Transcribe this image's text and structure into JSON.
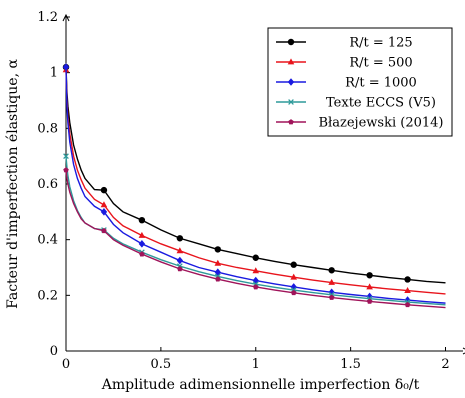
{
  "chart_data": {
    "type": "line",
    "title": "",
    "xlabel": "Amplitude adimensionnelle imperfection δ₀/t",
    "ylabel": "Facteur d'imperfection élastique, α",
    "xlim": [
      0,
      2.05
    ],
    "ylim": [
      0,
      1.2
    ],
    "x_ticks": [
      0,
      0.5,
      1,
      1.5,
      2
    ],
    "x_tick_labels": [
      "0",
      "0.5",
      "1",
      "1.5",
      "2"
    ],
    "y_ticks": [
      0,
      0.2,
      0.4,
      0.6,
      0.8,
      1,
      1.2
    ],
    "y_tick_labels": [
      "0",
      "0.2",
      "0.4",
      "0.6",
      "0.8",
      "1",
      "1.2"
    ],
    "legend_position": "top-right",
    "grid": false,
    "series": [
      {
        "name": "R/t = 125",
        "color": "#000000",
        "marker": "circle",
        "x": [
          0,
          0.005,
          0.01,
          0.02,
          0.04,
          0.06,
          0.08,
          0.1,
          0.15,
          0.2,
          0.25,
          0.3,
          0.4,
          0.5,
          0.6,
          0.7,
          0.8,
          0.9,
          1.0,
          1.1,
          1.2,
          1.3,
          1.4,
          1.5,
          1.6,
          1.7,
          1.8,
          1.9,
          2.0
        ],
        "y": [
          1.02,
          0.93,
          0.88,
          0.82,
          0.74,
          0.69,
          0.65,
          0.62,
          0.58,
          0.578,
          0.53,
          0.5,
          0.47,
          0.435,
          0.405,
          0.385,
          0.365,
          0.35,
          0.335,
          0.322,
          0.31,
          0.3,
          0.29,
          0.28,
          0.272,
          0.264,
          0.257,
          0.25,
          0.245
        ],
        "markers_x": [
          0,
          0.2,
          0.4,
          0.6,
          0.8,
          1.0,
          1.2,
          1.4,
          1.6,
          1.8
        ]
      },
      {
        "name": "R/t = 500",
        "color": "#e8141c",
        "marker": "triangle",
        "x": [
          0,
          0.005,
          0.01,
          0.02,
          0.04,
          0.06,
          0.08,
          0.1,
          0.15,
          0.2,
          0.25,
          0.3,
          0.4,
          0.5,
          0.6,
          0.7,
          0.8,
          0.9,
          1.0,
          1.1,
          1.2,
          1.3,
          1.4,
          1.5,
          1.6,
          1.7,
          1.8,
          1.9,
          2.0
        ],
        "y": [
          1.01,
          0.9,
          0.84,
          0.78,
          0.7,
          0.65,
          0.615,
          0.585,
          0.545,
          0.525,
          0.48,
          0.45,
          0.415,
          0.385,
          0.36,
          0.335,
          0.315,
          0.3,
          0.288,
          0.276,
          0.265,
          0.255,
          0.246,
          0.238,
          0.23,
          0.223,
          0.217,
          0.211,
          0.205
        ],
        "markers_x": [
          0,
          0.2,
          0.4,
          0.6,
          0.8,
          1.0,
          1.2,
          1.4,
          1.6,
          1.8
        ]
      },
      {
        "name": "R/t = 1000",
        "color": "#1a1ae0",
        "marker": "diamond",
        "x": [
          0,
          0.005,
          0.01,
          0.02,
          0.04,
          0.06,
          0.08,
          0.1,
          0.15,
          0.2,
          0.25,
          0.3,
          0.4,
          0.5,
          0.6,
          0.7,
          0.8,
          0.9,
          1.0,
          1.1,
          1.2,
          1.3,
          1.4,
          1.5,
          1.6,
          1.7,
          1.8,
          1.9,
          2.0
        ],
        "y": [
          1.02,
          0.88,
          0.82,
          0.75,
          0.67,
          0.62,
          0.585,
          0.555,
          0.52,
          0.5,
          0.455,
          0.425,
          0.385,
          0.355,
          0.325,
          0.3,
          0.283,
          0.267,
          0.253,
          0.241,
          0.23,
          0.22,
          0.211,
          0.203,
          0.196,
          0.189,
          0.183,
          0.177,
          0.172
        ],
        "markers_x": [
          0,
          0.2,
          0.4,
          0.6,
          0.8,
          1.0,
          1.2,
          1.4,
          1.6,
          1.8
        ]
      },
      {
        "name": "Texte ECCS (V5)",
        "color": "#2e9a9a",
        "marker": "x",
        "x": [
          0,
          0.005,
          0.01,
          0.02,
          0.04,
          0.06,
          0.08,
          0.1,
          0.15,
          0.2,
          0.25,
          0.3,
          0.4,
          0.5,
          0.6,
          0.7,
          0.8,
          0.9,
          1.0,
          1.1,
          1.2,
          1.3,
          1.4,
          1.5,
          1.6,
          1.7,
          1.8,
          1.9,
          2.0
        ],
        "y": [
          0.7,
          0.66,
          0.63,
          0.59,
          0.54,
          0.505,
          0.48,
          0.46,
          0.44,
          0.435,
          0.405,
          0.385,
          0.355,
          0.328,
          0.305,
          0.285,
          0.268,
          0.253,
          0.24,
          0.229,
          0.219,
          0.21,
          0.202,
          0.195,
          0.188,
          0.182,
          0.176,
          0.171,
          0.166
        ],
        "markers_x": [
          0,
          0.2,
          0.4,
          0.6,
          0.8,
          1.0,
          1.2,
          1.4,
          1.6,
          1.8
        ]
      },
      {
        "name": "Błazejewski (2014)",
        "color": "#a0145a",
        "marker": "pentagon",
        "x": [
          0,
          0.005,
          0.01,
          0.02,
          0.04,
          0.06,
          0.08,
          0.1,
          0.15,
          0.2,
          0.25,
          0.3,
          0.4,
          0.5,
          0.6,
          0.7,
          0.8,
          0.9,
          1.0,
          1.1,
          1.2,
          1.3,
          1.4,
          1.5,
          1.6,
          1.7,
          1.8,
          1.9,
          2.0
        ],
        "y": [
          0.65,
          0.62,
          0.6,
          0.57,
          0.53,
          0.5,
          0.475,
          0.46,
          0.44,
          0.432,
          0.4,
          0.38,
          0.348,
          0.32,
          0.295,
          0.275,
          0.258,
          0.243,
          0.23,
          0.219,
          0.209,
          0.2,
          0.192,
          0.185,
          0.178,
          0.172,
          0.166,
          0.161,
          0.156
        ],
        "markers_x": [
          0,
          0.2,
          0.4,
          0.6,
          0.8,
          1.0,
          1.2,
          1.4,
          1.6,
          1.8
        ]
      }
    ]
  }
}
